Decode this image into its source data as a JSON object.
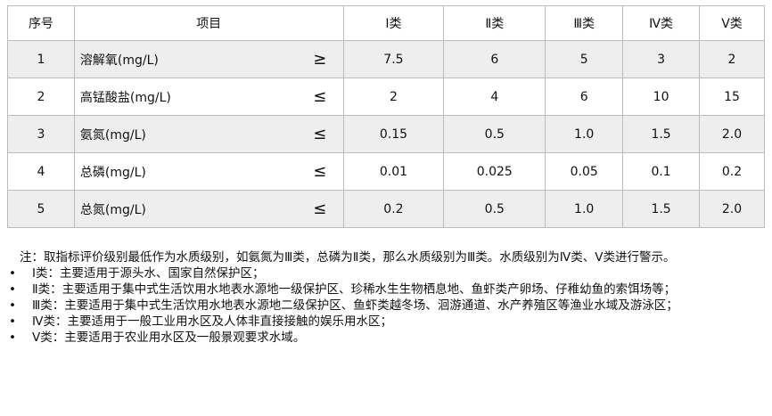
{
  "table": {
    "headers": [
      "序号",
      "项目",
      "Ⅰ类",
      "Ⅱ类",
      "Ⅲ类",
      "Ⅳ类",
      "Ⅴ类"
    ],
    "rows": [
      {
        "no": "1",
        "item": "溶解氧(mg/L)",
        "op": "≥",
        "values": [
          "7.5",
          "6",
          "5",
          "3",
          "2"
        ]
      },
      {
        "no": "2",
        "item": "高锰酸盐(mg/L)",
        "op": "≤",
        "values": [
          "2",
          "4",
          "6",
          "10",
          "15"
        ]
      },
      {
        "no": "3",
        "item": "氨氮(mg/L)",
        "op": "≤",
        "values": [
          "0.15",
          "0.5",
          "1.0",
          "1.5",
          "2.0"
        ]
      },
      {
        "no": "4",
        "item": "总磷(mg/L)",
        "op": "≤",
        "values": [
          "0.01",
          "0.025",
          "0.05",
          "0.1",
          "0.2"
        ]
      },
      {
        "no": "5",
        "item": "总氮(mg/L)",
        "op": "≤",
        "values": [
          "0.2",
          "0.5",
          "1.0",
          "1.5",
          "2.0"
        ]
      }
    ]
  },
  "notes": {
    "intro": "注：取指标评价级别最低作为水质级别，如氨氮为Ⅲ类，总磷为Ⅱ类，那么水质级别为Ⅲ类。水质级别为Ⅳ类、Ⅴ类进行警示。",
    "items": [
      "Ⅰ类：主要适用于源头水、国家自然保护区；",
      "Ⅱ类：主要适用于集中式生活饮用水地表水源地一级保护区、珍稀水生生物栖息地、鱼虾类产卵场、仔稚幼鱼的索饵场等；",
      "Ⅲ类：主要适用于集中式生活饮用水地表水源地二级保护区、鱼虾类越冬场、洄游通道、水产养殖区等渔业水域及游泳区；",
      "Ⅳ类：主要适用于一般工业用水区及人体非直接接触的娱乐用水区；",
      "Ⅴ类：主要适用于农业用水区及一般景观要求水域。"
    ]
  }
}
